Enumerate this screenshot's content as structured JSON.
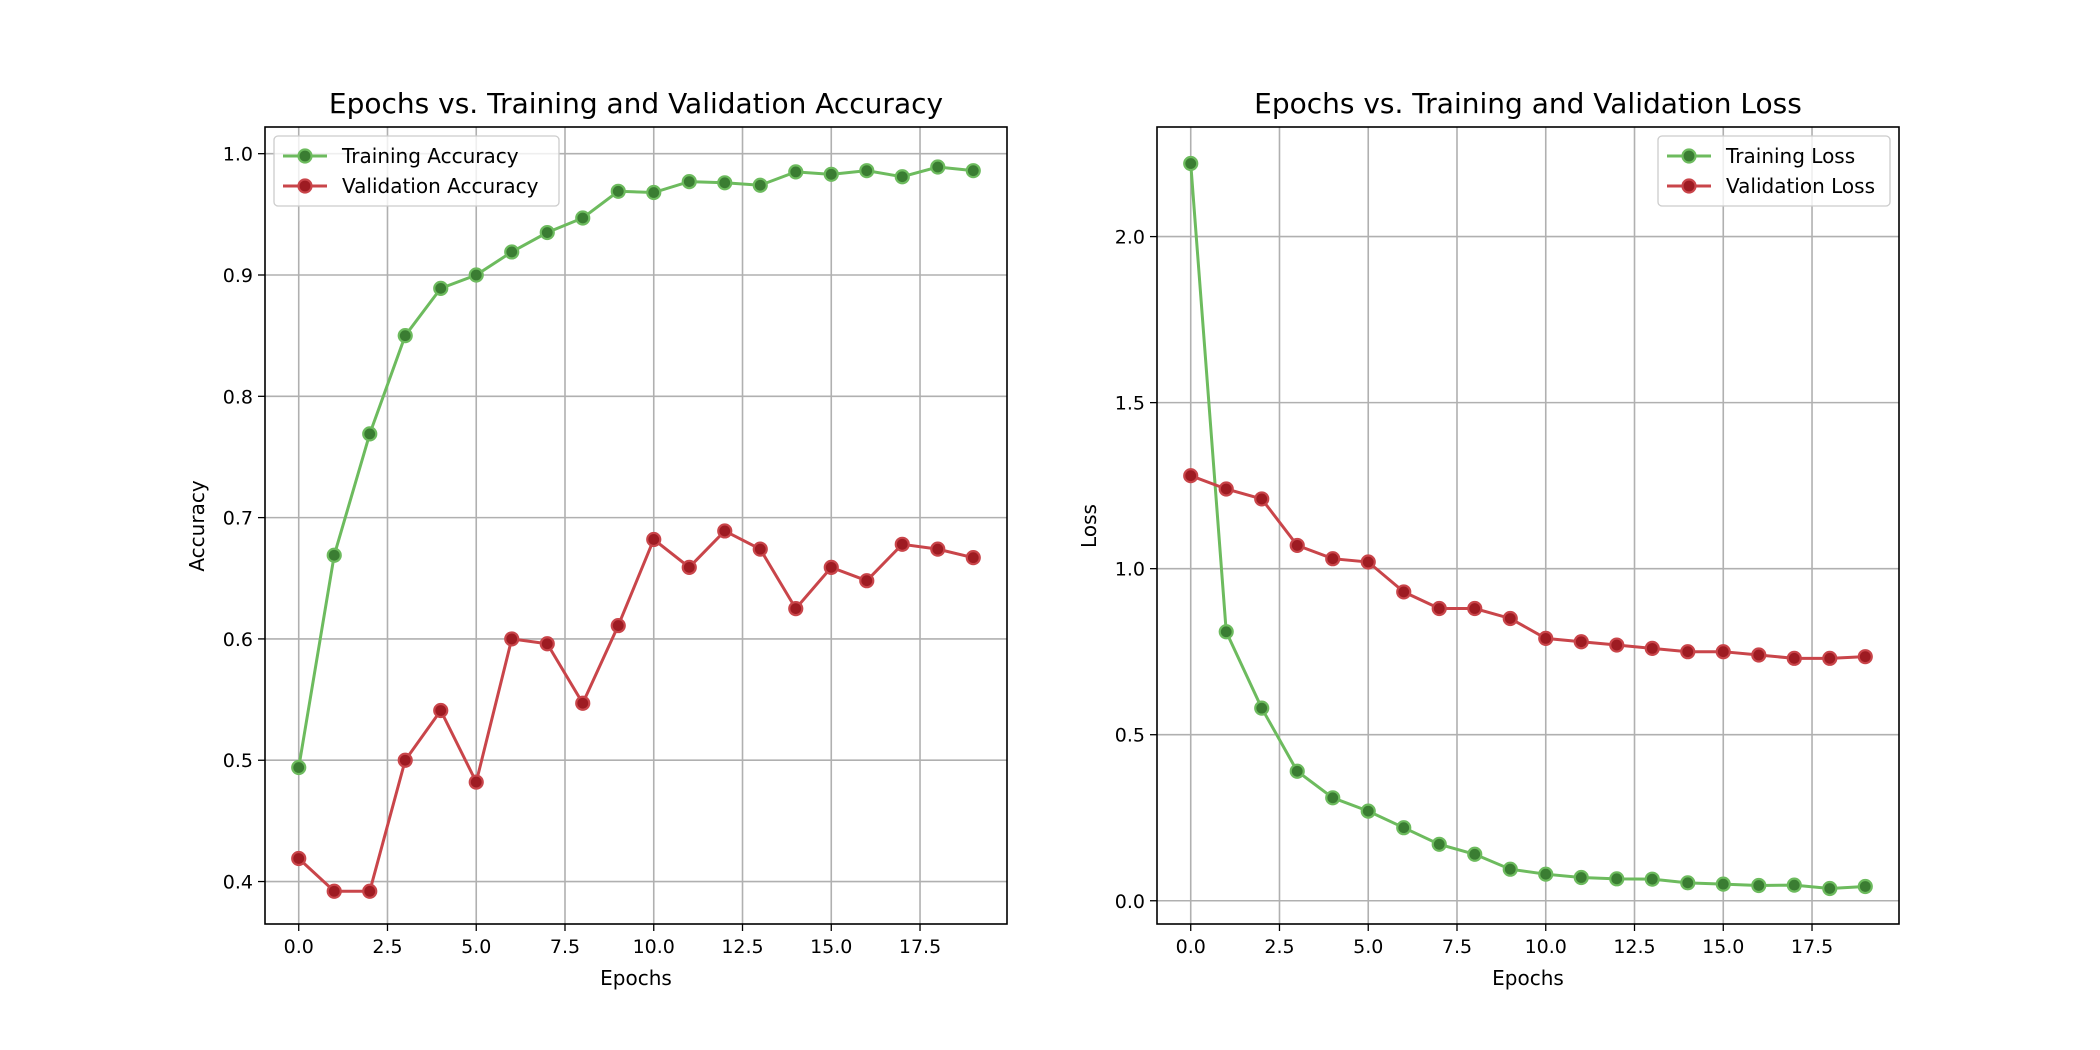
{
  "chart_data": [
    {
      "type": "line",
      "title": "Epochs vs. Training and Validation Accuracy",
      "xlabel": "Epochs",
      "ylabel": "Accuracy",
      "xlim": [
        -0.95,
        19.95
      ],
      "ylim": [
        0.365,
        1.022
      ],
      "xticks": [
        0.0,
        2.5,
        5.0,
        7.5,
        10.0,
        12.5,
        15.0,
        17.5
      ],
      "xtick_labels": [
        "0.0",
        "2.5",
        "5.0",
        "7.5",
        "10.0",
        "12.5",
        "15.0",
        "17.5"
      ],
      "yticks": [
        0.4,
        0.5,
        0.6,
        0.7,
        0.8,
        0.9,
        1.0
      ],
      "ytick_labels": [
        "0.4",
        "0.5",
        "0.6",
        "0.7",
        "0.8",
        "0.9",
        "1.0"
      ],
      "grid": true,
      "legend_position": "upper-left",
      "x": [
        0,
        1,
        2,
        3,
        4,
        5,
        6,
        7,
        8,
        9,
        10,
        11,
        12,
        13,
        14,
        15,
        16,
        17,
        18,
        19
      ],
      "series": [
        {
          "name": "Training Accuracy",
          "color": "#6dbb5e",
          "marker_color": "#3a7d32",
          "values": [
            0.494,
            0.669,
            0.769,
            0.85,
            0.889,
            0.9,
            0.919,
            0.935,
            0.947,
            0.969,
            0.968,
            0.977,
            0.976,
            0.974,
            0.985,
            0.983,
            0.986,
            0.981,
            0.989,
            0.986
          ]
        },
        {
          "name": "Validation Accuracy",
          "color": "#c9454a",
          "marker_color": "#9e1b22",
          "values": [
            0.419,
            0.392,
            0.392,
            0.5,
            0.541,
            0.482,
            0.6,
            0.596,
            0.547,
            0.611,
            0.682,
            0.659,
            0.689,
            0.674,
            0.625,
            0.659,
            0.648,
            0.678,
            0.674,
            0.667
          ]
        }
      ]
    },
    {
      "type": "line",
      "title": "Epochs vs. Training and Validation Loss",
      "xlabel": "Epochs",
      "ylabel": "Loss",
      "xlim": [
        -0.95,
        19.95
      ],
      "ylim": [
        -0.07,
        2.33
      ],
      "xticks": [
        0.0,
        2.5,
        5.0,
        7.5,
        10.0,
        12.5,
        15.0,
        17.5
      ],
      "xtick_labels": [
        "0.0",
        "2.5",
        "5.0",
        "7.5",
        "10.0",
        "12.5",
        "15.0",
        "17.5"
      ],
      "yticks": [
        0.0,
        0.5,
        1.0,
        1.5,
        2.0
      ],
      "ytick_labels": [
        "0.0",
        "0.5",
        "1.0",
        "1.5",
        "2.0"
      ],
      "grid": true,
      "legend_position": "upper-right",
      "x": [
        0,
        1,
        2,
        3,
        4,
        5,
        6,
        7,
        8,
        9,
        10,
        11,
        12,
        13,
        14,
        15,
        16,
        17,
        18,
        19
      ],
      "series": [
        {
          "name": "Training Loss",
          "color": "#6dbb5e",
          "marker_color": "#3a7d32",
          "values": [
            2.22,
            0.81,
            0.58,
            0.39,
            0.31,
            0.27,
            0.22,
            0.17,
            0.14,
            0.095,
            0.08,
            0.07,
            0.066,
            0.065,
            0.054,
            0.05,
            0.046,
            0.047,
            0.037,
            0.043
          ]
        },
        {
          "name": "Validation Loss",
          "color": "#c9454a",
          "marker_color": "#9e1b22",
          "values": [
            1.28,
            1.24,
            1.21,
            1.07,
            1.03,
            1.02,
            0.93,
            0.88,
            0.88,
            0.85,
            0.79,
            0.78,
            0.77,
            0.76,
            0.75,
            0.75,
            0.74,
            0.73,
            0.73,
            0.735
          ]
        }
      ]
    }
  ]
}
